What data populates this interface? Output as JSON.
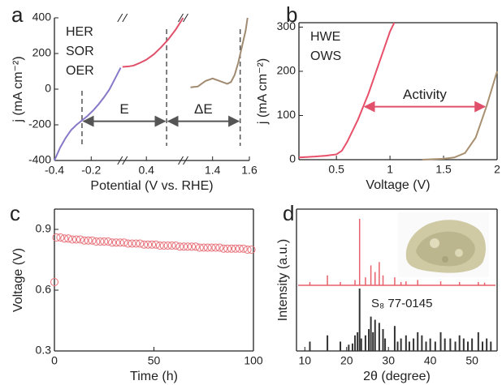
{
  "chart_data": [
    {
      "type": "line",
      "panel_label": "a",
      "x_label": "Potential (V vs. RHE)",
      "y_label": "j (mA cm⁻²)",
      "x_segments": [
        [
          -0.4,
          -0.03
        ],
        [
          0.27,
          0.6
        ],
        [
          1.24,
          1.6
        ]
      ],
      "xticks": [
        -0.4,
        -0.2,
        0.4,
        1.4,
        1.6
      ],
      "ylim": [
        -400,
        400
      ],
      "yticks": [
        -400,
        -200,
        0,
        200,
        400
      ],
      "series": [
        {
          "name": "HER",
          "color": "#8878c8",
          "x": [
            -0.4,
            -0.37,
            -0.34,
            -0.31,
            -0.28,
            -0.25,
            -0.22,
            -0.19,
            -0.16,
            -0.13,
            -0.1,
            -0.07,
            -0.04
          ],
          "values": [
            -400,
            -330,
            -275,
            -230,
            -200,
            -175,
            -150,
            -120,
            -85,
            -45,
            0,
            60,
            120
          ]
        },
        {
          "name": "SOR",
          "color": "#e0506a",
          "x": [
            0.27,
            0.3,
            0.33,
            0.36,
            0.4,
            0.44,
            0.48,
            0.52,
            0.56,
            0.6
          ],
          "values": [
            125,
            127,
            132,
            145,
            165,
            195,
            235,
            280,
            335,
            400
          ]
        },
        {
          "name": "OER",
          "color": "#a08a70",
          "x": [
            1.28,
            1.32,
            1.36,
            1.4,
            1.44,
            1.48,
            1.5,
            1.52,
            1.54,
            1.56,
            1.58,
            1.59
          ],
          "values": [
            10,
            15,
            45,
            60,
            45,
            30,
            40,
            80,
            150,
            240,
            330,
            400
          ]
        }
      ],
      "vlines": [
        -0.25,
        0.51,
        1.55
      ],
      "arrows": [
        {
          "from": -0.25,
          "to": 0.51,
          "y": -180,
          "label": "E"
        },
        {
          "from": 0.51,
          "to": 1.55,
          "y": -180,
          "label": "ΔE"
        }
      ],
      "arrow_color": "#555555",
      "annotation_color": "#c0504d"
    },
    {
      "type": "line",
      "panel_label": "b",
      "x_label": "Voltage (V)",
      "y_label": "j (mA cm⁻²)",
      "xlim": [
        0.15,
        2.0
      ],
      "xticks": [
        0.5,
        1.0,
        1.5,
        2.0
      ],
      "ylim": [
        0,
        310
      ],
      "yticks": [
        0,
        100,
        200,
        300
      ],
      "series": [
        {
          "name": "HWE",
          "color": "#e8506a",
          "x": [
            0.15,
            0.3,
            0.4,
            0.5,
            0.55,
            0.6,
            0.7,
            0.8,
            0.9,
            1.0,
            1.04
          ],
          "values": [
            5,
            7,
            9,
            12,
            20,
            40,
            90,
            150,
            220,
            290,
            310
          ]
        },
        {
          "name": "OWS",
          "color": "#a89070",
          "x": [
            1.3,
            1.5,
            1.6,
            1.7,
            1.8,
            1.9,
            2.0
          ],
          "values": [
            0,
            2,
            5,
            15,
            50,
            120,
            200
          ]
        }
      ],
      "arrows": [
        {
          "from": 0.75,
          "to": 1.9,
          "y": 120,
          "label": "Activity"
        }
      ],
      "arrow_color": "#e0506a",
      "annotation_color": "#e0506a"
    },
    {
      "type": "scatter",
      "panel_label": "c",
      "x_label": "Time (h)",
      "y_label": "Voltage (V)",
      "xlim": [
        0,
        100
      ],
      "xticks": [
        0,
        50,
        100
      ],
      "ylim": [
        0.3,
        1.0
      ],
      "yticks": [
        0.3,
        0.6,
        0.9
      ],
      "color": "#e87078",
      "x": [
        0,
        1,
        3,
        5,
        7,
        9,
        11,
        13,
        15,
        17,
        19,
        21,
        23,
        25,
        27,
        29,
        31,
        33,
        35,
        37,
        39,
        41,
        43,
        45,
        47,
        49,
        51,
        53,
        55,
        57,
        59,
        61,
        63,
        65,
        67,
        69,
        71,
        73,
        75,
        77,
        79,
        81,
        83,
        85,
        87,
        89,
        91,
        93,
        95,
        97,
        99
      ],
      "values": [
        0.64,
        0.86,
        0.86,
        0.855,
        0.855,
        0.85,
        0.85,
        0.85,
        0.845,
        0.845,
        0.845,
        0.84,
        0.84,
        0.84,
        0.84,
        0.835,
        0.835,
        0.835,
        0.835,
        0.83,
        0.83,
        0.83,
        0.83,
        0.825,
        0.825,
        0.825,
        0.825,
        0.82,
        0.82,
        0.82,
        0.82,
        0.82,
        0.815,
        0.815,
        0.815,
        0.815,
        0.815,
        0.81,
        0.81,
        0.81,
        0.81,
        0.81,
        0.81,
        0.805,
        0.805,
        0.805,
        0.805,
        0.805,
        0.805,
        0.8,
        0.8
      ]
    },
    {
      "type": "stick",
      "panel_label": "d",
      "x_label": "2θ (degree)",
      "y_label": "Intensity (a.u.)",
      "xlim": [
        8,
        56
      ],
      "xticks": [
        10,
        20,
        30,
        40,
        50
      ],
      "ylim": [
        0,
        100
      ],
      "series": [
        {
          "color": "#e8606a",
          "x": [
            11.2,
            15.4,
            18.5,
            22,
            23.1,
            24.5,
            25.8,
            26.8,
            27.8,
            28.7,
            31.5,
            33,
            34.2,
            37,
            42.5,
            47,
            51.5,
            53
          ],
          "values": [
            5,
            15,
            5,
            8,
            100,
            12,
            30,
            20,
            35,
            15,
            12,
            5,
            6,
            8,
            6,
            5,
            5,
            4
          ]
        },
        {
          "name": "S₈ 77-0145",
          "color": "#333333",
          "x": [
            11.2,
            15.4,
            18.5,
            20.5,
            21.4,
            22,
            22.6,
            23.1,
            23.5,
            24.5,
            25.3,
            25.8,
            26.3,
            26.8,
            27.8,
            28.7,
            29.2,
            31.5,
            32.2,
            33,
            34.2,
            35,
            36,
            37,
            38,
            39,
            40,
            41.2,
            42.5,
            43.5,
            44.8,
            46,
            47,
            48,
            49,
            50,
            51.5,
            52.5,
            53.5,
            54.5
          ],
          "values": [
            15,
            25,
            15,
            10,
            12,
            25,
            30,
            100,
            20,
            25,
            35,
            55,
            30,
            50,
            45,
            35,
            20,
            40,
            15,
            20,
            25,
            15,
            20,
            30,
            25,
            15,
            20,
            15,
            30,
            20,
            20,
            15,
            25,
            20,
            15,
            20,
            30,
            15,
            20,
            15
          ]
        }
      ]
    }
  ]
}
